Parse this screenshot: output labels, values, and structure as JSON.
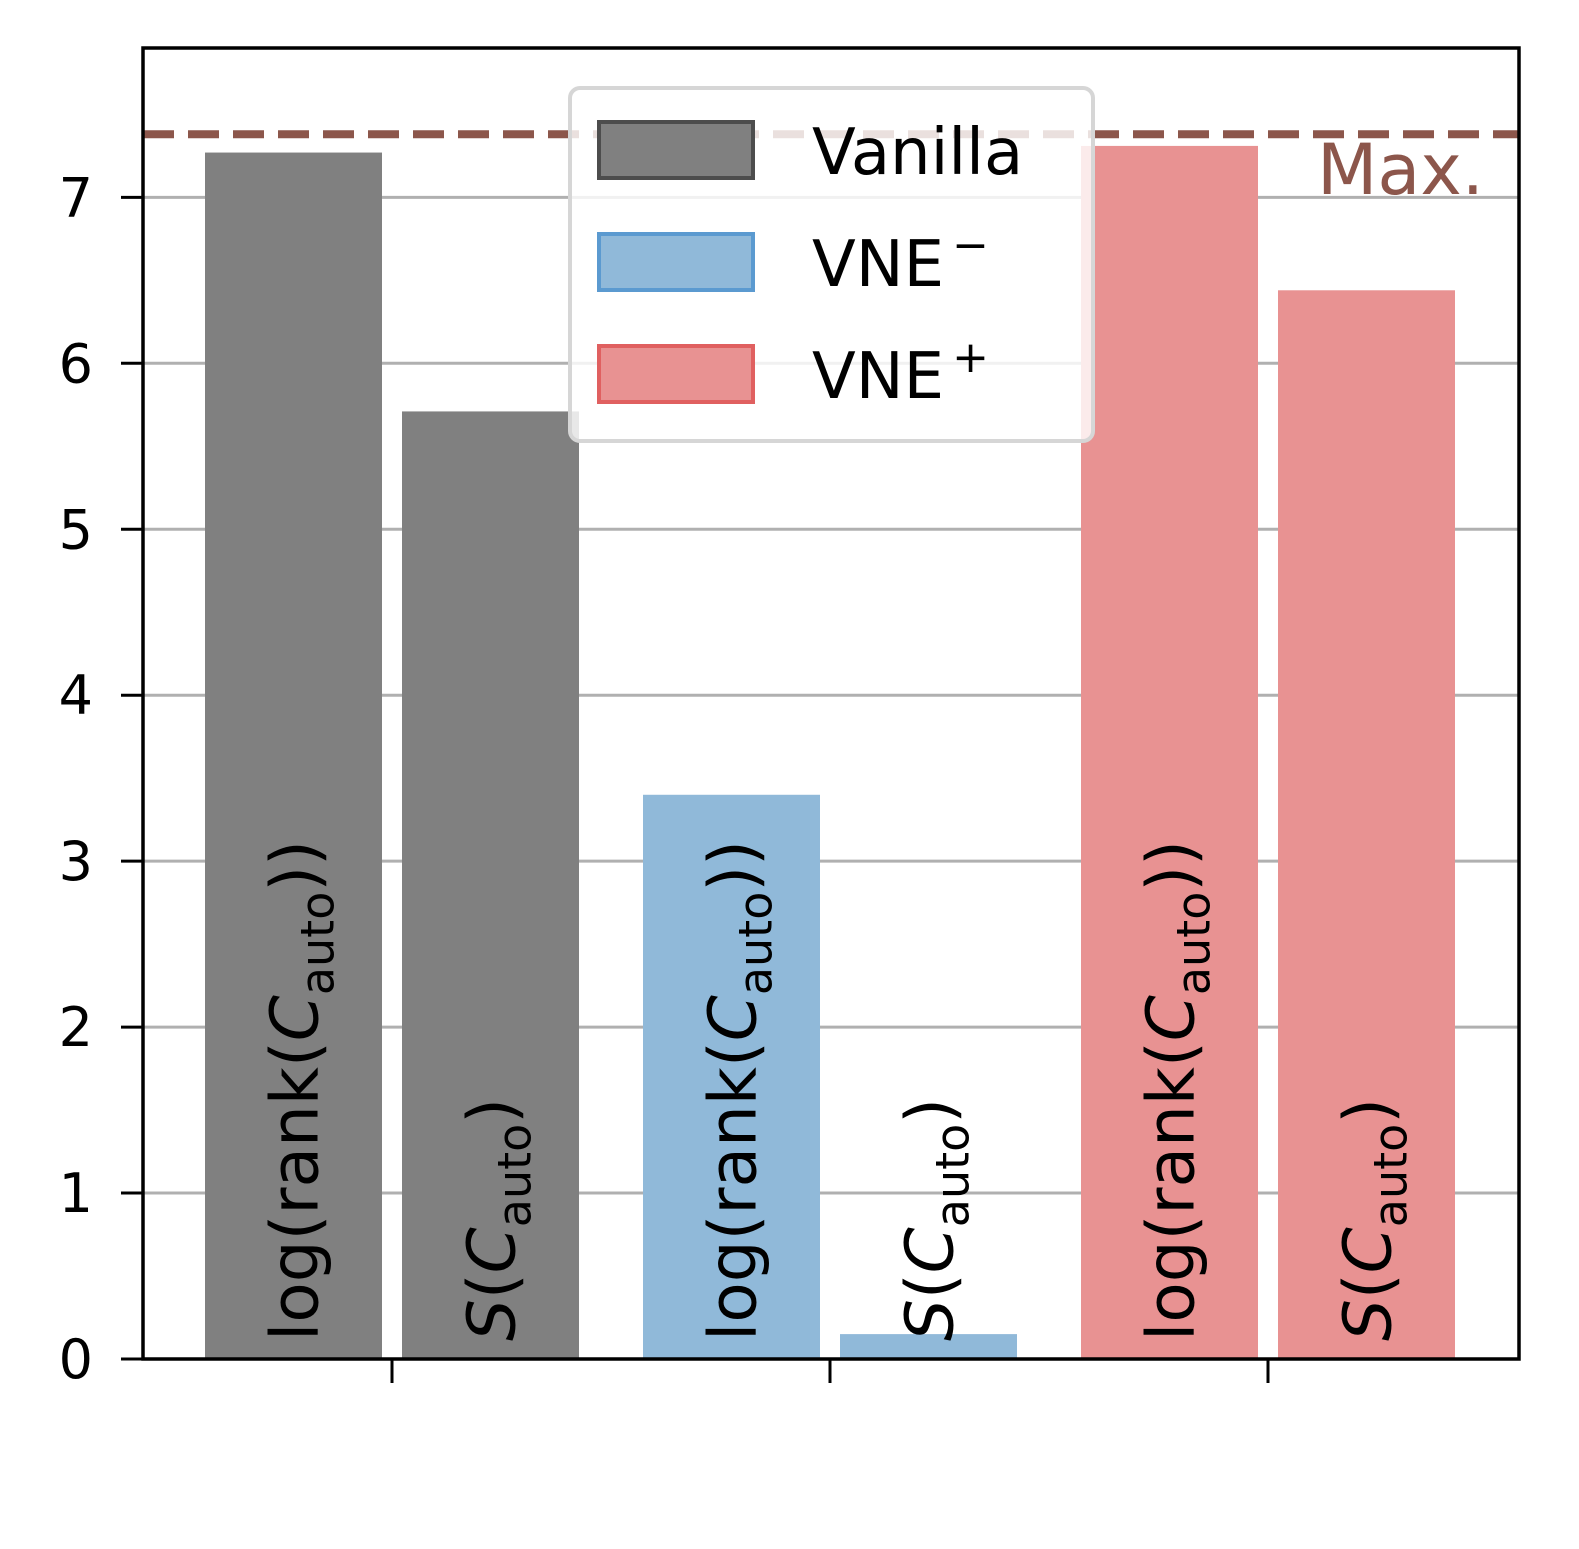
{
  "chart_data": {
    "type": "bar",
    "ylim": [
      0,
      7.9
    ],
    "yticks": [
      0,
      1,
      2,
      3,
      4,
      5,
      6,
      7
    ],
    "grid": "horizontal",
    "legend_position": "top-center",
    "bar_label_parts": {
      "log": "log(rank(",
      "S": "S",
      "C": "C",
      "sub": "auto",
      "close_log": "))",
      "open": "(",
      "close": ")"
    },
    "groups": [
      {
        "name": "Vanilla",
        "legend_label": "Vanilla",
        "legend_sup": "",
        "color": "#808080",
        "edge": "#4d4d4d",
        "values": {
          "log_rank": 7.27,
          "entropy": 5.71
        }
      },
      {
        "name": "VNE-",
        "legend_label": "VNE",
        "legend_sup": "−",
        "color": "#90b9d9",
        "edge": "#5b9ad0",
        "values": {
          "log_rank": 3.4,
          "entropy": 0.15
        }
      },
      {
        "name": "VNE+",
        "legend_label": "VNE",
        "legend_sup": "+",
        "color": "#e89292",
        "edge": "#e06060",
        "values": {
          "log_rank": 7.31,
          "entropy": 6.44
        }
      }
    ],
    "reference_line": {
      "value": 7.38,
      "label": "Max.",
      "color": "#8c564b"
    }
  }
}
